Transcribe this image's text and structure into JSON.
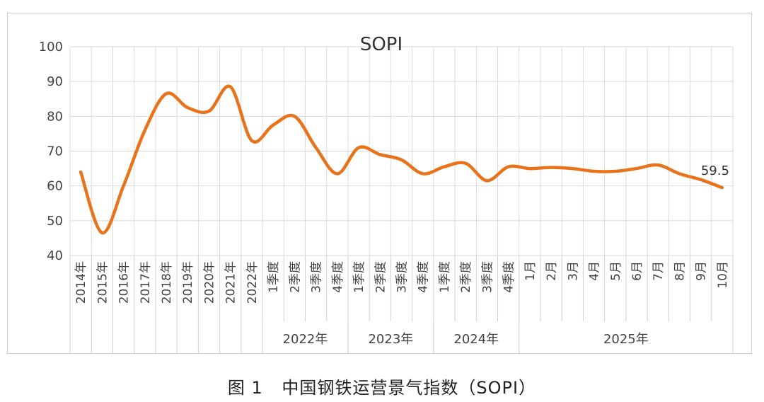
{
  "caption": {
    "figure_no": "图 1",
    "text": "中国钢铁运营景气指数（SOPI）"
  },
  "chart_data": {
    "type": "line",
    "title": "SOPI",
    "ylim": [
      40,
      100
    ],
    "y_ticks": [
      40,
      50,
      60,
      70,
      80,
      90,
      100
    ],
    "grid": true,
    "line_color": "#e8731a",
    "categories": [
      "2014年",
      "2015年",
      "2016年",
      "2017年",
      "2018年",
      "2019年",
      "2020年",
      "2021年",
      "2022年",
      "1季度",
      "2季度",
      "3季度",
      "4季度",
      "1季度",
      "2季度",
      "3季度",
      "4季度",
      "1季度",
      "2季度",
      "3季度",
      "4季度",
      "1月",
      "2月",
      "3月",
      "4月",
      "5月",
      "6月",
      "7月",
      "8月",
      "9月",
      "10月"
    ],
    "groups": [
      {
        "label": "2022年",
        "count": 4
      },
      {
        "label": "2023年",
        "count": 4
      },
      {
        "label": "2024年",
        "count": 4
      },
      {
        "label": "2025年",
        "count": 10
      }
    ],
    "series": [
      {
        "values": [
          64,
          46.5,
          60,
          76,
          86.5,
          82.5,
          81.5,
          88.5,
          73,
          77.5,
          80,
          71,
          63.5,
          71,
          69,
          67.5,
          63.5,
          65.5,
          66.5,
          61.5,
          65.5,
          65,
          65.3,
          65,
          64.2,
          64.2,
          65,
          66,
          63.5,
          61.8,
          59.5
        ]
      }
    ],
    "annotations": [
      {
        "index": 30,
        "text": "59.5"
      }
    ]
  }
}
